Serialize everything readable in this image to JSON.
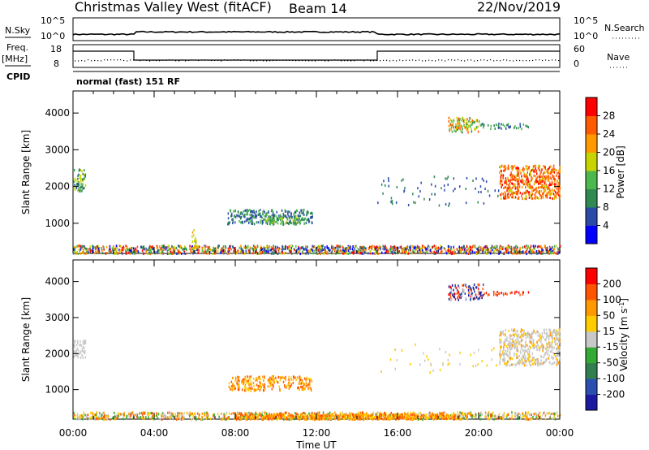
{
  "header": {
    "title": "Christmas Valley West (fitACF)",
    "beam": "Beam 14",
    "date": "22/Nov/2019"
  },
  "strip_labels": {
    "nsky": "N.Sky",
    "freq": "Freq.",
    "freq_unit": "[MHz]",
    "cpid": "CPID",
    "nsearch": "N.Search",
    "nave": "Nave",
    "mode": "normal (fast) 151 RF"
  },
  "strip_ticks": {
    "noise_left": [
      "10^5",
      "10^0"
    ],
    "noise_right": [
      "10^5",
      "10^0"
    ],
    "freq_left": [
      "18",
      "8"
    ],
    "nave_right": [
      "60",
      "0"
    ]
  },
  "chart_data": [
    {
      "type": "heatmap",
      "name": "power",
      "ylabel": "Slant Range [km]",
      "xlabel": "",
      "yticks": [
        "1000",
        "2000",
        "3000",
        "4000"
      ],
      "xticks": [
        "00:00",
        "04:00",
        "08:00",
        "12:00",
        "16:00",
        "20:00",
        "00:00"
      ],
      "x_range_hours": [
        0,
        24
      ],
      "y_range_km": [
        180,
        4600
      ],
      "colorbar": {
        "label": "Power [dB]",
        "ticks": [
          "4",
          "8",
          "12",
          "16",
          "20",
          "24",
          "28"
        ],
        "colors": [
          "#0000ff",
          "#2a4aa8",
          "#2f8a52",
          "#4db84d",
          "#c8d400",
          "#ff9900",
          "#ff5a00",
          "#ff0000"
        ]
      }
    },
    {
      "type": "heatmap",
      "name": "velocity",
      "ylabel": "Slant Range [km]",
      "xlabel": "Time UT",
      "yticks": [
        "1000",
        "2000",
        "3000",
        "4000"
      ],
      "xticks": [
        "00:00",
        "04:00",
        "08:00",
        "12:00",
        "16:00",
        "20:00",
        "00:00"
      ],
      "x_range_hours": [
        0,
        24
      ],
      "y_range_km": [
        180,
        4600
      ],
      "colorbar": {
        "label": "Velocity [m s",
        "label_sup": "-1",
        "label_end": "]",
        "ticks": [
          "200",
          "100",
          "50",
          "15",
          "-15",
          "-50",
          "-100",
          "-200"
        ],
        "colors": [
          "#1a1aa0",
          "#2a4fb0",
          "#2f7f4f",
          "#33aa33",
          "#c8c8c8",
          "#ffcc00",
          "#ff9900",
          "#ff5500",
          "#ff0000"
        ]
      }
    }
  ]
}
